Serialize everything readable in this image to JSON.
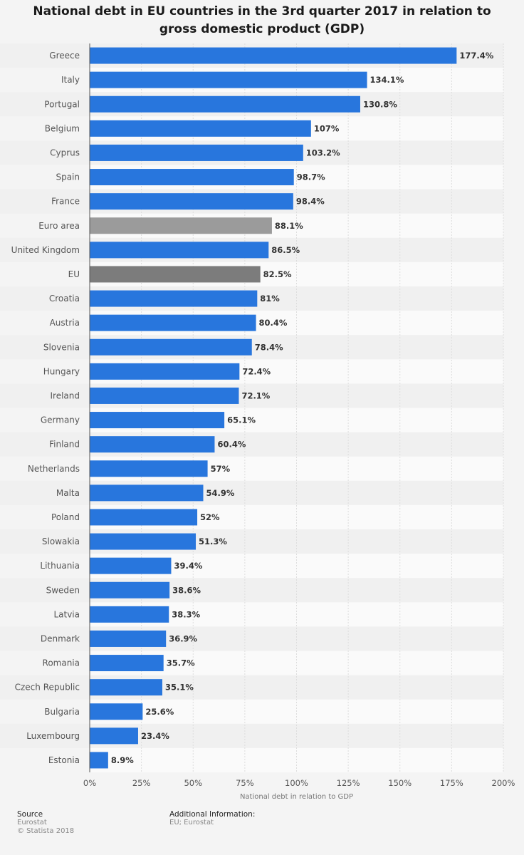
{
  "chart_data": {
    "type": "bar",
    "orientation": "horizontal",
    "title": "National debt in EU countries in the 3rd quarter 2017 in relation to gross domestic product (GDP)",
    "xlabel": "National debt in relation to GDP",
    "ylabel": "",
    "xlim": [
      0,
      200
    ],
    "x_ticks": [
      0,
      25,
      50,
      75,
      100,
      125,
      150,
      175,
      200
    ],
    "x_tick_labels": [
      "0%",
      "25%",
      "50%",
      "75%",
      "100%",
      "125%",
      "150%",
      "175%",
      "200%"
    ],
    "categories": [
      "Greece",
      "Italy",
      "Portugal",
      "Belgium",
      "Cyprus",
      "Spain",
      "France",
      "Euro area",
      "United Kingdom",
      "EU",
      "Croatia",
      "Austria",
      "Slovenia",
      "Hungary",
      "Ireland",
      "Germany",
      "Finland",
      "Netherlands",
      "Malta",
      "Poland",
      "Slowakia",
      "Lithuania",
      "Sweden",
      "Latvia",
      "Denmark",
      "Romania",
      "Czech Republic",
      "Bulgaria",
      "Luxembourg",
      "Estonia"
    ],
    "values": [
      177.4,
      134.1,
      130.8,
      107,
      103.2,
      98.7,
      98.4,
      88.1,
      86.5,
      82.5,
      81,
      80.4,
      78.4,
      72.4,
      72.1,
      65.1,
      60.4,
      57,
      54.9,
      52,
      51.3,
      39.4,
      38.6,
      38.3,
      36.9,
      35.7,
      35.1,
      25.6,
      23.4,
      8.9
    ],
    "value_labels": [
      "177.4%",
      "134.1%",
      "130.8%",
      "107%",
      "103.2%",
      "98.7%",
      "98.4%",
      "88.1%",
      "86.5%",
      "82.5%",
      "81%",
      "80.4%",
      "78.4%",
      "72.4%",
      "72.1%",
      "65.1%",
      "60.4%",
      "57%",
      "54.9%",
      "52%",
      "51.3%",
      "39.4%",
      "38.6%",
      "38.3%",
      "36.9%",
      "35.7%",
      "35.1%",
      "25.6%",
      "23.4%",
      "8.9%"
    ],
    "bar_colors": [
      "#2876dd",
      "#2876dd",
      "#2876dd",
      "#2876dd",
      "#2876dd",
      "#2876dd",
      "#2876dd",
      "#9b9b9b",
      "#2876dd",
      "#7c7c7c",
      "#2876dd",
      "#2876dd",
      "#2876dd",
      "#2876dd",
      "#2876dd",
      "#2876dd",
      "#2876dd",
      "#2876dd",
      "#2876dd",
      "#2876dd",
      "#2876dd",
      "#2876dd",
      "#2876dd",
      "#2876dd",
      "#2876dd",
      "#2876dd",
      "#2876dd",
      "#2876dd",
      "#2876dd",
      "#2876dd"
    ],
    "grid": true,
    "legend": "none"
  },
  "footer": {
    "source_heading": "Source",
    "source_text": "Eurostat",
    "copyright": "© Statista 2018",
    "additional_heading": "Additional Information:",
    "additional_text": "EU; Eurostat"
  },
  "colors": {
    "background": "#f4f4f4",
    "row_band": "#f0f0f0",
    "plot_background": "#fafafa",
    "grid": "#dddddd",
    "axis": "#555555"
  }
}
